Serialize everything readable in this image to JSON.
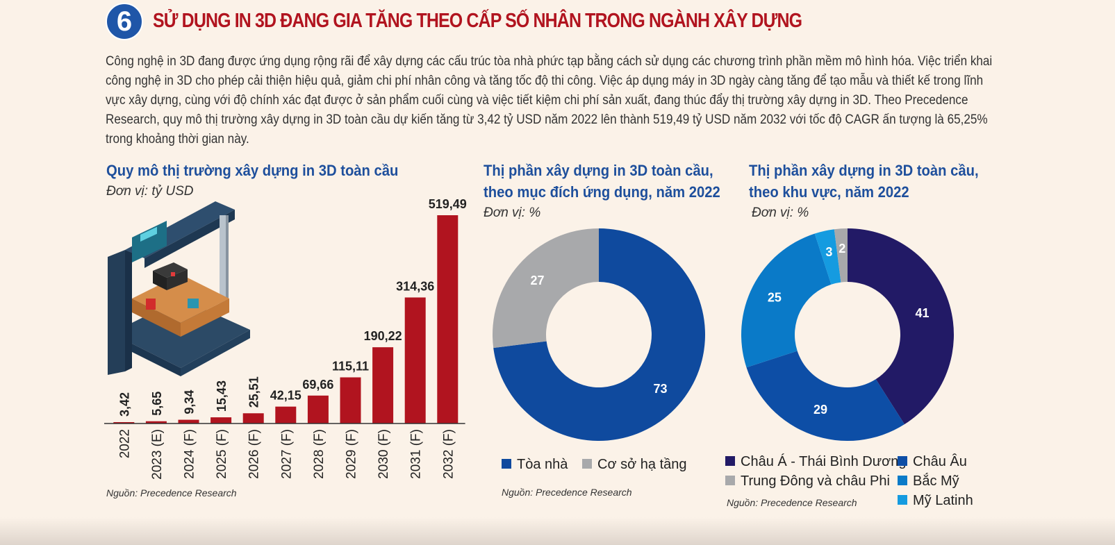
{
  "header": {
    "number": "6",
    "title": "SỬ DỤNG IN 3D ĐANG GIA TĂNG THEO CẤP SỐ NHÂN TRONG NGÀNH XÂY DỰNG"
  },
  "intro": "Công nghệ in 3D đang được ứng dụng rộng rãi để xây dựng các cấu trúc tòa nhà phức tạp bằng cách sử dụng các chương trình phần mềm mô hình hóa. Việc triển khai công nghệ in 3D cho phép cải thiện hiệu quả, giảm chi phí nhân công và tăng tốc độ thi công. Việc áp dụng máy in 3D ngày càng tăng để tạo mẫu và thiết kế trong lĩnh vực xây dựng, cùng với độ chính xác đạt được ở sản phẩm cuối cùng và việc tiết kiệm chi phí sản xuất, đang thúc đẩy thị trường xây dựng in 3D. Theo Precedence Research, quy mô thị trường xây dựng in 3D toàn cầu dự kiến tăng từ 3,42 tỷ USD năm 2022 lên thành 519,49 tỷ USD năm 2032 với tốc độ CAGR ấn tượng là 65,25% trong khoảng thời gian này.",
  "colors": {
    "bar": "#b1141f",
    "title_red": "#b1141f",
    "title_blue": "#1e4f9c"
  },
  "chart_data": [
    {
      "type": "bar",
      "title": "Quy mô thị trường xây dựng in 3D toàn cầu",
      "unit": "Đơn vị: tỷ USD",
      "categories": [
        "2022",
        "2023 (E)",
        "2024 (F)",
        "2025 (F)",
        "2026 (F)",
        "2027 (F)",
        "2028 (F)",
        "2029 (F)",
        "2030 (F)",
        "2031 (F)",
        "2032 (F)"
      ],
      "values": [
        3.42,
        5.65,
        9.34,
        15.43,
        25.51,
        42.15,
        69.66,
        115.11,
        190.22,
        314.36,
        519.49
      ],
      "value_labels": [
        "3,42",
        "5,65",
        "9,34",
        "15,43",
        "25,51",
        "42,15",
        "69,66",
        "115,11",
        "190,22",
        "314,36",
        "519,49"
      ],
      "source": "Nguồn: Precedence Research"
    },
    {
      "type": "pie",
      "title_lines": [
        "Thị phần xây dựng in 3D toàn cầu,",
        "theo mục đích ứng dụng, năm 2022"
      ],
      "unit": "Đơn vị: %",
      "slices": [
        {
          "label": "Tòa nhà",
          "value": 73,
          "color": "#0f4a9e"
        },
        {
          "label": "Cơ sở hạ tầng",
          "value": 27,
          "color": "#a8a9ab"
        }
      ],
      "source": "Nguồn: Precedence Research"
    },
    {
      "type": "pie",
      "title_lines": [
        "Thị phần xây dựng in 3D toàn cầu,",
        "theo khu vực, năm 2022"
      ],
      "unit": "Đơn vị: %",
      "slices": [
        {
          "label": "Châu Á - Thái Bình Dương",
          "value": 41,
          "color": "#221a66"
        },
        {
          "label": "Châu Âu",
          "value": 29,
          "color": "#0d4ea6"
        },
        {
          "label": "Bắc Mỹ",
          "value": 25,
          "color": "#0a7ac8"
        },
        {
          "label": "Mỹ Latinh",
          "value": 3,
          "color": "#159be0"
        },
        {
          "label": "Trung Đông và châu Phi",
          "value": 2,
          "color": "#a8a9ab"
        }
      ],
      "source": "Nguồn: Precedence Research"
    }
  ]
}
